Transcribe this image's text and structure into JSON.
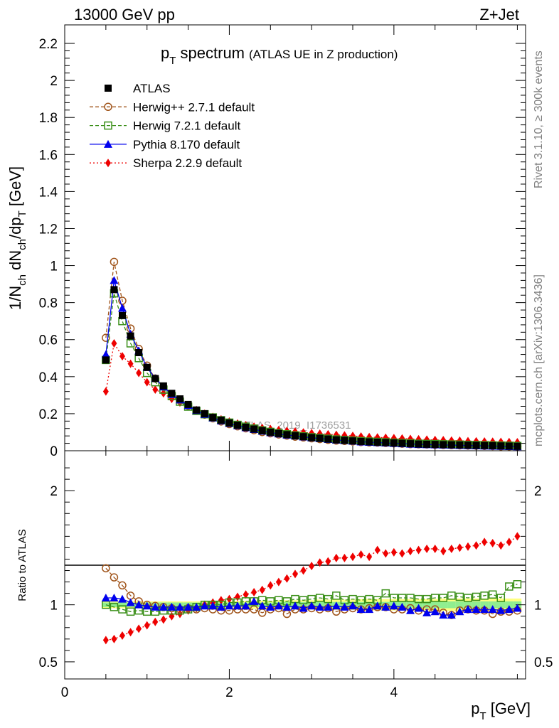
{
  "header": {
    "left": "13000 GeV pp",
    "right": "Z+Jet"
  },
  "side_labels": {
    "rivet": "Rivet 3.1.10, ≥ 300k events",
    "mcplots": "mcplots.cern.ch [arXiv:1306.3436]"
  },
  "colors": {
    "atlas": "#000000",
    "herwigpp": "#a0541a",
    "herwig7": "#3a8f18",
    "pythia": "#0000ee",
    "sherpa": "#ee0000",
    "band_outer": "#ffff80",
    "band_inner": "#90ee90"
  },
  "chart_data": [
    {
      "type": "line",
      "panel": "main",
      "title_main": "p",
      "title_sub": "T",
      "title_rest": " spectrum",
      "title_note": "(ATLAS UE in Z production)",
      "ylabel": "1/N_ch dN_ch/dp_T [GeV]",
      "ylim": [
        0,
        2.3
      ],
      "yticks": [
        0,
        0.2,
        0.4,
        0.6,
        0.8,
        1,
        1.2,
        1.4,
        1.6,
        1.8,
        2,
        2.2
      ],
      "ytick_labels": [
        "0",
        "0.2",
        "0.4",
        "0.6",
        "0.8",
        "1",
        "1.2",
        "1.4",
        "1.6",
        "1.8",
        "2",
        "2.2"
      ],
      "xlim": [
        0,
        5.6
      ],
      "watermark": "ATLAS_2019_I1736531",
      "legend_position": "top-left",
      "x": [
        0.5,
        0.6,
        0.7,
        0.8,
        0.9,
        1.0,
        1.1,
        1.2,
        1.3,
        1.4,
        1.5,
        1.6,
        1.7,
        1.8,
        1.9,
        2.0,
        2.1,
        2.2,
        2.3,
        2.4,
        2.5,
        2.6,
        2.7,
        2.8,
        2.9,
        3.0,
        3.1,
        3.2,
        3.3,
        3.4,
        3.5,
        3.6,
        3.7,
        3.8,
        3.9,
        4.0,
        4.1,
        4.2,
        4.3,
        4.4,
        4.5,
        4.6,
        4.7,
        4.8,
        4.9,
        5.0,
        5.1,
        5.2,
        5.3,
        5.4,
        5.5
      ],
      "series": [
        {
          "name": "ATLAS",
          "key": "atlas",
          "marker": "square-filled",
          "line": "none",
          "values": [
            0.49,
            0.87,
            0.73,
            0.62,
            0.53,
            0.45,
            0.39,
            0.35,
            0.31,
            0.28,
            0.25,
            0.22,
            0.2,
            0.18,
            0.165,
            0.15,
            0.138,
            0.127,
            0.117,
            0.108,
            0.1,
            0.093,
            0.087,
            0.081,
            0.076,
            0.071,
            0.067,
            0.063,
            0.059,
            0.056,
            0.053,
            0.05,
            0.048,
            0.046,
            0.044,
            0.042,
            0.04,
            0.038,
            0.036,
            0.035,
            0.034,
            0.033,
            0.032,
            0.031,
            0.03,
            0.029,
            0.028,
            0.027,
            0.026,
            0.025,
            0.024
          ]
        },
        {
          "name": "Herwig++ 2.7.1 default",
          "key": "herwigpp",
          "marker": "circle-open",
          "line": "dashed",
          "values": [
            0.61,
            1.02,
            0.81,
            0.66,
            0.55,
            0.46,
            0.39,
            0.345,
            0.305,
            0.272,
            0.243,
            0.216,
            0.195,
            0.175,
            0.158,
            0.144,
            0.132,
            0.121,
            0.111,
            0.101,
            0.094,
            0.088,
            0.082,
            0.076,
            0.072,
            0.067,
            0.063,
            0.059,
            0.055,
            0.053,
            0.05,
            0.047,
            0.045,
            0.044,
            0.042,
            0.04,
            0.038,
            0.036,
            0.035,
            0.034,
            0.032,
            0.031,
            0.03,
            0.029,
            0.028,
            0.027,
            0.026,
            0.025,
            0.024,
            0.024,
            0.023
          ]
        },
        {
          "name": "Herwig 7.2.1 default",
          "key": "herwig7",
          "marker": "square-open",
          "line": "dashed",
          "values": [
            0.49,
            0.85,
            0.7,
            0.58,
            0.5,
            0.42,
            0.37,
            0.33,
            0.295,
            0.265,
            0.238,
            0.215,
            0.197,
            0.18,
            0.165,
            0.152,
            0.14,
            0.13,
            0.12,
            0.11,
            0.102,
            0.095,
            0.089,
            0.083,
            0.078,
            0.073,
            0.069,
            0.065,
            0.061,
            0.058,
            0.055,
            0.052,
            0.05,
            0.048,
            0.046,
            0.044,
            0.042,
            0.04,
            0.038,
            0.037,
            0.036,
            0.035,
            0.034,
            0.033,
            0.032,
            0.031,
            0.03,
            0.029,
            0.028,
            0.027,
            0.026
          ]
        },
        {
          "name": "Pythia 8.170 default",
          "key": "pythia",
          "marker": "triangle-filled",
          "line": "solid",
          "values": [
            0.52,
            0.92,
            0.77,
            0.63,
            0.54,
            0.45,
            0.39,
            0.345,
            0.305,
            0.275,
            0.245,
            0.218,
            0.197,
            0.178,
            0.162,
            0.148,
            0.136,
            0.125,
            0.115,
            0.106,
            0.098,
            0.091,
            0.085,
            0.08,
            0.075,
            0.07,
            0.066,
            0.062,
            0.058,
            0.055,
            0.052,
            0.048,
            0.046,
            0.044,
            0.042,
            0.04,
            0.038,
            0.036,
            0.034,
            0.033,
            0.032,
            0.031,
            0.03,
            0.029,
            0.028,
            0.027,
            0.026,
            0.025,
            0.024,
            0.023,
            0.022
          ]
        },
        {
          "name": "Sherpa 2.2.9 default",
          "key": "sherpa",
          "marker": "diamond-filled",
          "line": "dotted",
          "values": [
            0.32,
            0.58,
            0.51,
            0.47,
            0.42,
            0.37,
            0.33,
            0.31,
            0.28,
            0.26,
            0.24,
            0.22,
            0.2,
            0.183,
            0.17,
            0.158,
            0.147,
            0.138,
            0.13,
            0.123,
            0.117,
            0.112,
            0.107,
            0.103,
            0.099,
            0.095,
            0.092,
            0.089,
            0.086,
            0.083,
            0.08,
            0.077,
            0.074,
            0.072,
            0.07,
            0.068,
            0.066,
            0.064,
            0.062,
            0.06,
            0.058,
            0.057,
            0.055,
            0.054,
            0.052,
            0.051,
            0.05,
            0.049,
            0.048,
            0.047,
            0.046
          ]
        }
      ]
    },
    {
      "type": "line",
      "panel": "ratio",
      "ylabel": "Ratio to ATLAS",
      "xlabel_main": "p",
      "xlabel_sub": "T",
      "xlabel_rest": " [GeV]",
      "ylim": [
        0.35,
        2.35
      ],
      "yticks": [
        0.5,
        1,
        2
      ],
      "ytick_labels": [
        "0.5",
        "1",
        "2"
      ],
      "xlim": [
        0,
        5.6
      ],
      "xticks": [
        0,
        2,
        4
      ],
      "xtick_labels": [
        "0",
        "2",
        "4"
      ],
      "x": [
        0.5,
        0.6,
        0.7,
        0.8,
        0.9,
        1.0,
        1.1,
        1.2,
        1.3,
        1.4,
        1.5,
        1.6,
        1.7,
        1.8,
        1.9,
        2.0,
        2.1,
        2.2,
        2.3,
        2.4,
        2.5,
        2.6,
        2.7,
        2.8,
        2.9,
        3.0,
        3.1,
        3.2,
        3.3,
        3.4,
        3.5,
        3.6,
        3.7,
        3.8,
        3.9,
        4.0,
        4.1,
        4.2,
        4.3,
        4.4,
        4.5,
        4.6,
        4.7,
        4.8,
        4.9,
        5.0,
        5.1,
        5.2,
        5.3,
        5.4,
        5.5
      ],
      "band_inner": [
        0.02,
        0.02,
        0.02,
        0.02,
        0.02,
        0.02,
        0.02,
        0.02,
        0.02,
        0.02,
        0.02,
        0.02,
        0.02,
        0.02,
        0.02,
        0.02,
        0.02,
        0.02,
        0.02,
        0.02,
        0.02,
        0.025,
        0.025,
        0.025,
        0.025,
        0.025,
        0.025,
        0.025,
        0.025,
        0.025,
        0.025,
        0.025,
        0.025,
        0.025,
        0.025,
        0.03,
        0.03,
        0.03,
        0.03,
        0.03,
        0.03,
        0.03,
        0.03,
        0.03,
        0.03,
        0.03,
        0.03,
        0.03,
        0.03,
        0.03,
        0.03
      ],
      "band_outer": [
        0.03,
        0.03,
        0.03,
        0.03,
        0.03,
        0.03,
        0.03,
        0.03,
        0.03,
        0.03,
        0.03,
        0.03,
        0.03,
        0.03,
        0.03,
        0.03,
        0.035,
        0.035,
        0.035,
        0.035,
        0.035,
        0.04,
        0.04,
        0.04,
        0.04,
        0.04,
        0.045,
        0.045,
        0.045,
        0.045,
        0.045,
        0.05,
        0.05,
        0.05,
        0.05,
        0.05,
        0.05,
        0.05,
        0.05,
        0.05,
        0.05,
        0.055,
        0.055,
        0.055,
        0.055,
        0.055,
        0.055,
        0.055,
        0.055,
        0.055,
        0.055
      ],
      "series": [
        {
          "name": "Herwig++ 2.7.1 default",
          "key": "herwigpp",
          "marker": "circle-open",
          "line": "dashed",
          "values": [
            1.32,
            1.24,
            1.17,
            1.08,
            1.03,
            1.0,
            0.99,
            0.98,
            0.97,
            0.96,
            0.97,
            0.96,
            0.97,
            0.96,
            0.95,
            0.95,
            0.96,
            0.96,
            0.96,
            0.93,
            0.96,
            0.97,
            0.92,
            0.96,
            0.96,
            0.97,
            0.96,
            0.97,
            0.94,
            0.96,
            0.97,
            0.96,
            0.97,
            0.98,
            0.98,
            0.96,
            0.96,
            0.97,
            0.95,
            0.96,
            0.96,
            0.93,
            0.91,
            0.95,
            0.96,
            0.95,
            0.95,
            0.92,
            0.94,
            0.94,
            0.95
          ]
        },
        {
          "name": "Herwig 7.2.1 default",
          "key": "herwig7",
          "marker": "square-open",
          "line": "dashed",
          "values": [
            1.0,
            0.98,
            0.96,
            0.94,
            0.95,
            0.94,
            0.94,
            0.95,
            0.95,
            0.95,
            0.96,
            0.98,
            1.0,
            1.0,
            1.0,
            1.02,
            1.02,
            1.03,
            1.03,
            1.04,
            1.03,
            1.04,
            1.03,
            1.05,
            1.04,
            1.05,
            1.06,
            1.05,
            1.08,
            1.04,
            1.05,
            1.04,
            1.05,
            1.04,
            1.1,
            1.06,
            1.06,
            1.06,
            1.05,
            1.05,
            1.06,
            1.06,
            1.08,
            1.07,
            1.06,
            1.07,
            1.08,
            1.09,
            1.06,
            1.16,
            1.18
          ]
        },
        {
          "name": "Pythia 8.170 default",
          "key": "pythia",
          "marker": "triangle-filled",
          "line": "solid",
          "values": [
            1.06,
            1.06,
            1.05,
            1.02,
            1.0,
            0.99,
            0.98,
            0.98,
            0.98,
            0.98,
            0.98,
            0.98,
            0.99,
            0.99,
            0.98,
            0.99,
            0.99,
            0.99,
            1.03,
            0.99,
            0.98,
            0.99,
            0.98,
            0.99,
            0.97,
            0.99,
            0.98,
            0.98,
            0.99,
            0.98,
            0.99,
            0.96,
            0.96,
            0.99,
            0.98,
            0.99,
            0.98,
            0.95,
            0.97,
            0.93,
            0.94,
            0.91,
            0.91,
            0.94,
            0.96,
            0.96,
            0.96,
            0.96,
            0.95,
            0.96,
            0.97
          ]
        },
        {
          "name": "Sherpa 2.2.9 default",
          "key": "sherpa",
          "marker": "diamond-filled",
          "line": "dotted",
          "values": [
            0.69,
            0.7,
            0.73,
            0.76,
            0.79,
            0.82,
            0.85,
            0.87,
            0.9,
            0.92,
            0.95,
            0.97,
            1.0,
            1.02,
            1.04,
            1.05,
            1.07,
            1.09,
            1.11,
            1.13,
            1.17,
            1.2,
            1.23,
            1.27,
            1.3,
            1.34,
            1.37,
            1.38,
            1.41,
            1.41,
            1.42,
            1.44,
            1.42,
            1.48,
            1.45,
            1.46,
            1.45,
            1.47,
            1.48,
            1.49,
            1.49,
            1.47,
            1.49,
            1.5,
            1.51,
            1.52,
            1.55,
            1.54,
            1.52,
            1.55,
            1.6
          ]
        }
      ]
    }
  ]
}
